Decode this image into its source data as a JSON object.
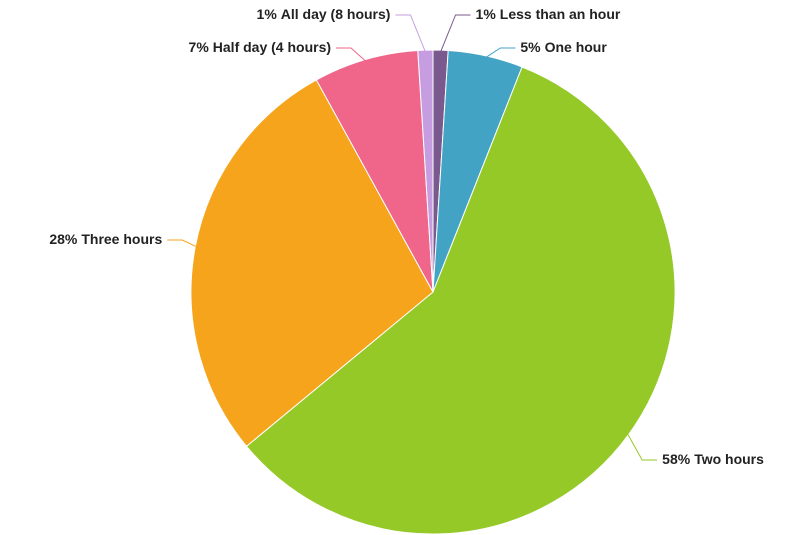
{
  "chart_data": {
    "type": "pie",
    "categories": [
      "Less than an hour",
      "One hour",
      "Two hours",
      "Three hours",
      "Half day (4 hours)",
      "All day (8 hours)"
    ],
    "values": [
      1,
      5,
      58,
      28,
      7,
      1
    ],
    "value_labels": [
      "1%",
      "5%",
      "58%",
      "28%",
      "7%",
      "1%"
    ],
    "colors": [
      "#7a5a8e",
      "#42a3c4",
      "#94c927",
      "#f5a41b",
      "#f0658a",
      "#c79de2"
    ]
  }
}
